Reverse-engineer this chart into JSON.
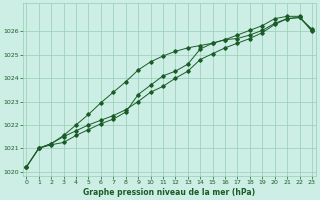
{
  "title": "Graphe pression niveau de la mer (hPa)",
  "bg_color": "#cceee4",
  "line_color": "#1a5c28",
  "grid_color": "#99ccb8",
  "ylim": [
    1019.8,
    1027.2
  ],
  "xlim": [
    -0.3,
    23.3
  ],
  "yticks": [
    1020,
    1021,
    1022,
    1023,
    1024,
    1025,
    1026
  ],
  "xticks": [
    0,
    1,
    2,
    3,
    4,
    5,
    6,
    7,
    8,
    9,
    10,
    11,
    12,
    13,
    14,
    15,
    16,
    17,
    18,
    19,
    20,
    21,
    22,
    23
  ],
  "series1": [
    1020.2,
    1021.0,
    1021.15,
    1021.25,
    1021.55,
    1021.8,
    1022.05,
    1022.25,
    1022.55,
    1023.3,
    1023.7,
    1024.1,
    1024.3,
    1024.6,
    1025.25,
    1025.5,
    1025.65,
    1025.7,
    1025.85,
    1026.05,
    1026.35,
    1026.55,
    1026.6,
    1026.05
  ],
  "series2": [
    1020.2,
    1021.0,
    1021.2,
    1021.5,
    1021.75,
    1022.0,
    1022.2,
    1022.4,
    1022.65,
    1023.0,
    1023.4,
    1023.65,
    1024.0,
    1024.3,
    1024.8,
    1025.05,
    1025.3,
    1025.5,
    1025.7,
    1025.95,
    1026.3,
    1026.55,
    1026.6,
    1026.1
  ],
  "series3": [
    1020.2,
    1021.0,
    1021.2,
    1021.55,
    1022.0,
    1022.45,
    1022.95,
    1023.4,
    1023.85,
    1024.35,
    1024.7,
    1024.95,
    1025.15,
    1025.3,
    1025.4,
    1025.5,
    1025.65,
    1025.85,
    1026.05,
    1026.25,
    1026.55,
    1026.65,
    1026.65,
    1026.0
  ]
}
